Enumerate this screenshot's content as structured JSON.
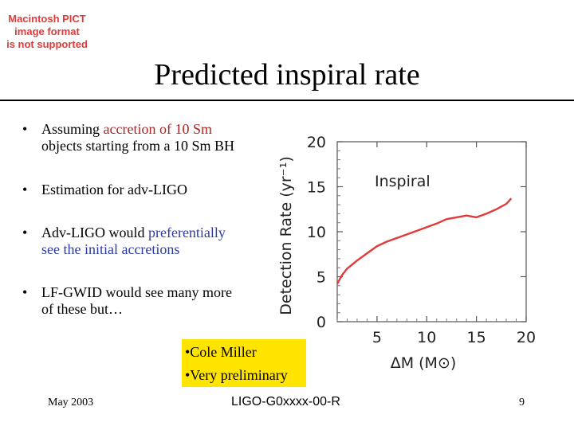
{
  "pict_notice": [
    "Macintosh PICT",
    "image format",
    "is not supported"
  ],
  "slide": {
    "title": "Predicted inspiral rate",
    "bullets": [
      {
        "parts": [
          {
            "t": "Assuming ",
            "c": ""
          },
          {
            "t": "accretion of 10 Sm",
            "c": "red"
          }
        ],
        "line2": "objects starting from a 10 Sm  BH"
      },
      {
        "parts": [
          {
            "t": "Estimation for adv-LIGO",
            "c": ""
          }
        ],
        "line2": ""
      },
      {
        "parts": [
          {
            "t": "Adv-LIGO would ",
            "c": ""
          },
          {
            "t": "preferentially",
            "c": "blue"
          }
        ],
        "line2": "see the initial accretions",
        "line2_color": "blue"
      },
      {
        "parts": [
          {
            "t": "LF-GWID would see many more",
            "c": ""
          }
        ],
        "line2": "of these but…"
      }
    ],
    "bullet_symbol": "•",
    "note": [
      "•Cole Miller",
      "•Very preliminary"
    ],
    "footer": {
      "date": "May 2003",
      "code": "LIGO-G0xxxx-00-R",
      "page": "9"
    }
  },
  "colors": {
    "curve": "#e23a3a",
    "note_bg": "#ffe400",
    "red_text": "#b22222",
    "blue_text": "#2a3aa8"
  },
  "chart_data": {
    "type": "line",
    "title": "Inspiral",
    "xlabel": "ΔM (M⊙)",
    "ylabel": "Detection Rate (yr⁻¹)",
    "xlim": [
      1,
      20
    ],
    "ylim": [
      0,
      20
    ],
    "xticks": [
      5,
      10,
      15,
      20
    ],
    "yticks": [
      0,
      5,
      10,
      15,
      20
    ],
    "grid": false,
    "series": [
      {
        "x": [
          1,
          1.5,
          2,
          3,
          4,
          5,
          6,
          7,
          8,
          9,
          10,
          11,
          12,
          13,
          14,
          15,
          16,
          17,
          18,
          18.5
        ],
        "values": [
          4.2,
          5.2,
          5.9,
          6.8,
          7.6,
          8.4,
          8.9,
          9.3,
          9.7,
          10.1,
          10.5,
          10.9,
          11.4,
          11.6,
          11.8,
          11.6,
          12.0,
          12.5,
          13.1,
          13.7
        ]
      }
    ]
  }
}
